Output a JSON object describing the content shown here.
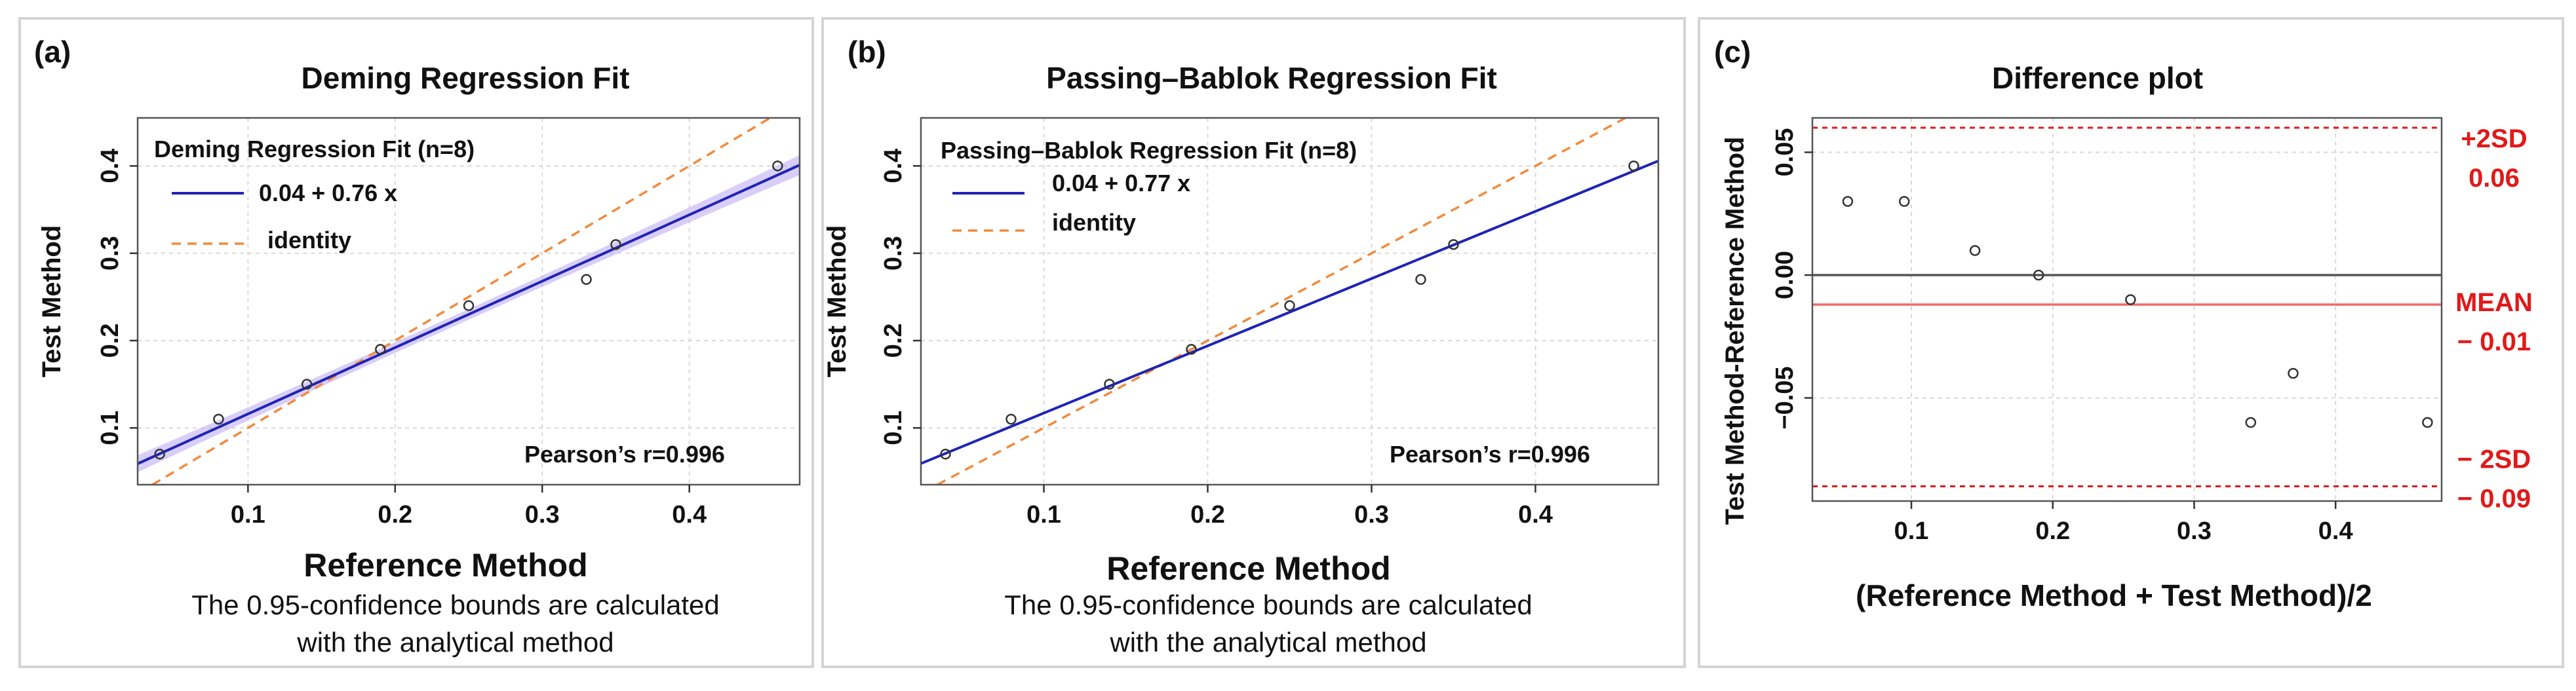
{
  "chart_data": [
    {
      "type": "scatter",
      "panel": "(a)",
      "title": "Deming Regression Fit",
      "xlabel": "Reference Method",
      "ylabel": "Test Method",
      "xlim": [
        0.025,
        0.475
      ],
      "ylim": [
        0.035,
        0.455
      ],
      "xticks": [
        0.1,
        0.2,
        0.3,
        0.4
      ],
      "xtick_labels": [
        "0.1",
        "0.2",
        "0.3",
        "0.4"
      ],
      "yticks": [
        0.1,
        0.2,
        0.3,
        0.4
      ],
      "ytick_labels": [
        "0.1",
        "0.2",
        "0.3",
        "0.4"
      ],
      "grid": true,
      "points": {
        "x": [
          0.04,
          0.08,
          0.14,
          0.19,
          0.25,
          0.33,
          0.35,
          0.46
        ],
        "y": [
          0.07,
          0.11,
          0.15,
          0.19,
          0.24,
          0.27,
          0.31,
          0.4
        ]
      },
      "fit": {
        "intercept": 0.04,
        "slope": 0.76
      },
      "confidence_band": true,
      "legend": {
        "title": "Deming Regression Fit (n=8)",
        "entries": [
          "0.04 + 0.76 x",
          "identity"
        ],
        "position": "top-left"
      },
      "annotation": "Pearson’s r=0.996",
      "note": [
        "The 0.95-confidence bounds are calculated",
        "with the analytical method"
      ],
      "colors": {
        "fit": "#1f24b5",
        "identity": "#f28a3c",
        "band": "#b8a6f2"
      }
    },
    {
      "type": "scatter",
      "panel": "(b)",
      "title": "Passing–Bablok Regression Fit",
      "xlabel": "Reference Method",
      "ylabel": "Test Method",
      "xlim": [
        0.025,
        0.475
      ],
      "ylim": [
        0.035,
        0.455
      ],
      "xticks": [
        0.1,
        0.2,
        0.3,
        0.4
      ],
      "xtick_labels": [
        "0.1",
        "0.2",
        "0.3",
        "0.4"
      ],
      "yticks": [
        0.1,
        0.2,
        0.3,
        0.4
      ],
      "ytick_labels": [
        "0.1",
        "0.2",
        "0.3",
        "0.4"
      ],
      "grid": true,
      "points": {
        "x": [
          0.04,
          0.08,
          0.14,
          0.19,
          0.25,
          0.33,
          0.35,
          0.46
        ],
        "y": [
          0.07,
          0.11,
          0.15,
          0.19,
          0.24,
          0.27,
          0.31,
          0.4
        ]
      },
      "fit": {
        "intercept": 0.04,
        "slope": 0.77
      },
      "confidence_band": false,
      "legend": {
        "title": "Passing–Bablok Regression Fit (n=8)",
        "entries": [
          "0.04 + 0.77 x",
          "identity"
        ],
        "position": "top-left"
      },
      "annotation": "Pearson’s r=0.996",
      "note": [
        "The 0.95-confidence bounds are calculated",
        "with the analytical method"
      ],
      "colors": {
        "fit": "#1f24b5",
        "identity": "#f28a3c"
      }
    },
    {
      "type": "scatter",
      "panel": "(c)",
      "title": "Difference plot",
      "xlabel": "(Reference Method + Test Method)/2",
      "ylabel": "Test Method-Reference Method",
      "xlim": [
        0.03,
        0.475
      ],
      "ylim": [
        -0.092,
        0.064
      ],
      "xticks": [
        0.1,
        0.2,
        0.3,
        0.4
      ],
      "xtick_labels": [
        "0.1",
        "0.2",
        "0.3",
        "0.4"
      ],
      "yticks": [
        0.05,
        0.0,
        -0.05
      ],
      "ytick_labels": [
        "0.05",
        "0.00",
        "−0.05"
      ],
      "grid": true,
      "points": {
        "x": [
          0.055,
          0.095,
          0.145,
          0.19,
          0.255,
          0.34,
          0.37,
          0.465
        ],
        "y": [
          0.03,
          0.03,
          0.01,
          0.0,
          -0.01,
          -0.06,
          -0.04,
          -0.06
        ]
      },
      "reference_lines": [
        {
          "name": "+2SD",
          "value": 0.06,
          "label": "+2SD",
          "value_label": "0.06",
          "color": "#e11919",
          "style": "dashed"
        },
        {
          "name": "MEAN",
          "value": -0.012,
          "label": "MEAN",
          "value_label": "− 0.01",
          "color": "#f06a6a",
          "style": "solid"
        },
        {
          "name": "zero",
          "value": 0.0,
          "color": "#555555",
          "style": "solid"
        },
        {
          "name": "-2SD",
          "value": -0.086,
          "label": "− 2SD",
          "value_label": "− 0.09",
          "color": "#e11919",
          "style": "dashed"
        }
      ]
    }
  ]
}
